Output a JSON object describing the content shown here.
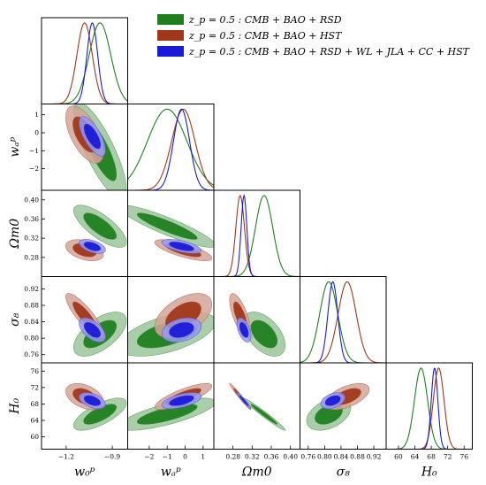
{
  "chart_data": {
    "type": "corner-triangle",
    "parameters": [
      {
        "key": "w0",
        "label": "w₀ᵖ",
        "range": [
          -1.36,
          -0.8
        ],
        "ticks": [
          -1.2,
          -0.9
        ],
        "tick_labels": [
          "−1.2",
          "−0.9"
        ]
      },
      {
        "key": "wa",
        "label": "wₐᵖ",
        "range": [
          -3.2,
          1.6
        ],
        "ticks": [
          -2,
          -1,
          0,
          1
        ],
        "tick_labels": [
          "−2",
          "−1",
          "0",
          "1"
        ]
      },
      {
        "key": "om",
        "label": "Ωm0",
        "range": [
          0.24,
          0.42
        ],
        "ticks": [
          0.28,
          0.32,
          0.36,
          0.4
        ],
        "tick_labels": [
          "0.28",
          "0.32",
          "0.36",
          "0.40"
        ]
      },
      {
        "key": "s8",
        "label": "σ₈",
        "range": [
          0.74,
          0.95
        ],
        "ticks": [
          0.76,
          0.8,
          0.84,
          0.88,
          0.92
        ],
        "tick_labels": [
          "0.76",
          "0.80",
          "0.84",
          "0.88",
          "0.92"
        ]
      },
      {
        "key": "H0",
        "label": "H₀",
        "range": [
          57,
          78
        ],
        "ticks": [
          60,
          64,
          68,
          72,
          76
        ],
        "tick_labels": [
          "60",
          "64",
          "68",
          "72",
          "76"
        ]
      }
    ],
    "series": [
      {
        "name": "z_p = 0.5 :  CMB + BAO + RSD",
        "color": "#1f7f1f",
        "mean": [
          -0.98,
          -1.0,
          0.345,
          0.81,
          65.5
        ],
        "sigma": [
          0.07,
          1.1,
          0.018,
          0.022,
          1.6
        ],
        "corr": {
          "0-1": -0.8,
          "0-2": -0.75,
          "0-3": 0.6,
          "0-4": 0.7,
          "1-2": -0.9,
          "1-3": 0.55,
          "1-4": 0.75,
          "2-3": -0.5,
          "2-4": -0.98,
          "3-4": 0.4
        }
      },
      {
        "name": "z_p = 0.5 :  CMB + BAO + HST",
        "color": "#a0381a",
        "mean": [
          -1.08,
          -0.1,
          0.295,
          0.855,
          69.8
        ],
        "sigma": [
          0.05,
          0.65,
          0.009,
          0.022,
          1.3
        ],
        "corr": {
          "0-1": -0.6,
          "0-2": -0.4,
          "0-3": -0.85,
          "0-4": -0.4,
          "1-2": -0.75,
          "1-3": 0.5,
          "1-4": 0.8,
          "2-3": -0.7,
          "2-4": -0.98,
          "3-4": 0.55
        }
      },
      {
        "name": "z_p = 0.5 :  CMB + BAO + RSD + WL + JLA + CC + HST",
        "color": "#1a1ad9",
        "mean": [
          -1.03,
          -0.2,
          0.303,
          0.82,
          68.8
        ],
        "sigma": [
          0.035,
          0.45,
          0.006,
          0.012,
          0.8
        ],
        "corr": {
          "0-1": -0.7,
          "0-2": -0.5,
          "0-3": -0.55,
          "0-4": -0.45,
          "1-2": -0.6,
          "1-3": 0.3,
          "1-4": 0.55,
          "2-3": -0.5,
          "2-4": -0.97,
          "3-4": 0.4
        }
      }
    ],
    "legend_position": "top-right",
    "contour_levels": [
      "68%",
      "95%"
    ]
  }
}
